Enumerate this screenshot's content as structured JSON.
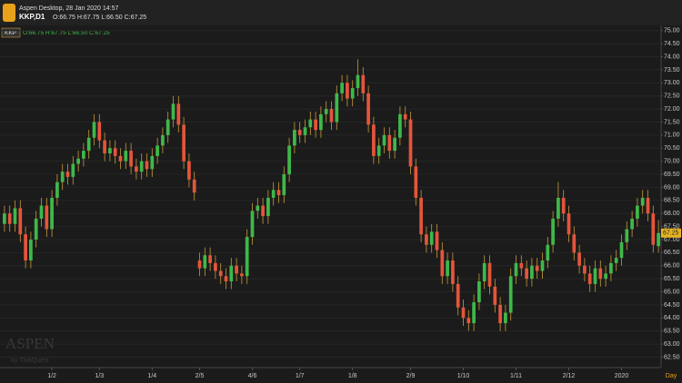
{
  "header": {
    "app_title": "Aspen Desktop, 28 Jan 2020 14:57",
    "symbol": "KKP,D1",
    "ohlc": "O:66.75 H:67.75 L:66.50 C:67.25"
  },
  "legend": {
    "symbol": "KKP",
    "ohlc": "O:66.75 H:67.75 L:66.50 C:67.25"
  },
  "watermark": {
    "brand": "ASPEN",
    "by": "by ThaiQuest"
  },
  "chart_data": {
    "type": "candlestick",
    "x_label": "Day",
    "last_price_label": "67.25",
    "up_color": "#3fb84a",
    "down_color": "#e4553b",
    "wick_color": "#c99a3a",
    "grid": true,
    "ylim": [
      62.1,
      75.2
    ],
    "yticks": [
      {
        "value": 62.5,
        "label": "62.50"
      },
      {
        "value": 63,
        "label": "63.00"
      },
      {
        "value": 63.5,
        "label": "63.50"
      },
      {
        "value": 64,
        "label": "64.00"
      },
      {
        "value": 64.5,
        "label": "64.50"
      },
      {
        "value": 65,
        "label": "65.00"
      },
      {
        "value": 65.5,
        "label": "65.50"
      },
      {
        "value": 66,
        "label": "66.00"
      },
      {
        "value": 66.5,
        "label": "66.50"
      },
      {
        "value": 67,
        "label": "67.00"
      },
      {
        "value": 67.5,
        "label": "67.50"
      },
      {
        "value": 68,
        "label": "68.00"
      },
      {
        "value": 68.5,
        "label": "68.50"
      },
      {
        "value": 69,
        "label": "69.00"
      },
      {
        "value": 69.5,
        "label": "69.50"
      },
      {
        "value": 70,
        "label": "70.00"
      },
      {
        "value": 70.5,
        "label": "70.50"
      },
      {
        "value": 71,
        "label": "71.00"
      },
      {
        "value": 71.5,
        "label": "71.50"
      },
      {
        "value": 72,
        "label": "72.00"
      },
      {
        "value": 72.5,
        "label": "72.50"
      },
      {
        "value": 73,
        "label": "73.00"
      },
      {
        "value": 73.5,
        "label": "73.50"
      },
      {
        "value": 74,
        "label": "74.00"
      },
      {
        "value": 74.5,
        "label": "74.50"
      },
      {
        "value": 75,
        "label": "75.00"
      }
    ],
    "categories": [
      null,
      null,
      null,
      null,
      null,
      null,
      null,
      null,
      null,
      "1/2",
      null,
      null,
      null,
      null,
      null,
      null,
      null,
      null,
      "1/3",
      null,
      null,
      null,
      null,
      null,
      null,
      null,
      null,
      null,
      "1/4",
      null,
      null,
      null,
      null,
      null,
      null,
      null,
      null,
      "2/5",
      null,
      null,
      null,
      null,
      null,
      null,
      null,
      null,
      null,
      "4/6",
      null,
      null,
      null,
      null,
      null,
      null,
      null,
      null,
      "1/7",
      null,
      null,
      null,
      null,
      null,
      null,
      null,
      null,
      null,
      "1/8",
      null,
      null,
      null,
      null,
      null,
      null,
      null,
      null,
      null,
      null,
      "2/9",
      null,
      null,
      null,
      null,
      null,
      null,
      null,
      null,
      null,
      "1/10",
      null,
      null,
      null,
      null,
      null,
      null,
      null,
      null,
      null,
      "1/11",
      null,
      null,
      null,
      null,
      null,
      null,
      null,
      null,
      null,
      "2/12",
      null,
      null,
      null,
      null,
      null,
      null,
      null,
      null,
      null,
      "2020",
      null,
      null,
      null,
      null,
      null,
      null,
      null
    ],
    "open": [
      67.6,
      68.0,
      67.6,
      68.2,
      67.2,
      66.2,
      67.0,
      67.8,
      68.3,
      67.4,
      68.6,
      69.2,
      69.6,
      69.4,
      69.9,
      70.1,
      70.4,
      70.9,
      71.5,
      70.8,
      70.3,
      70.5,
      70.2,
      70.0,
      70.4,
      69.8,
      69.6,
      70.0,
      69.7,
      70.2,
      70.6,
      71.0,
      71.6,
      72.2,
      71.4,
      70.0,
      69.3,
      66.2,
      65.9,
      66.4,
      66.1,
      65.8,
      65.6,
      65.4,
      66.0,
      65.7,
      65.6,
      67.1,
      68.1,
      68.3,
      67.9,
      68.6,
      68.9,
      68.7,
      69.5,
      70.6,
      71.2,
      71.0,
      71.3,
      71.6,
      71.2,
      71.8,
      72.0,
      71.5,
      72.6,
      73.0,
      72.4,
      72.8,
      73.3,
      72.6,
      71.4,
      70.2,
      70.6,
      71.0,
      70.4,
      70.9,
      71.8,
      71.6,
      69.8,
      68.6,
      67.2,
      66.8,
      67.3,
      66.6,
      65.6,
      66.2,
      65.3,
      64.4,
      64.0,
      63.8,
      64.6,
      65.4,
      66.1,
      65.2,
      64.5,
      63.8,
      64.2,
      65.6,
      66.1,
      65.9,
      65.5,
      66.0,
      65.8,
      66.2,
      66.8,
      67.8,
      68.6,
      68.0,
      67.2,
      66.5,
      66.0,
      65.7,
      65.3,
      65.9,
      65.5,
      65.7,
      66.1,
      66.3,
      66.9,
      67.4,
      67.8,
      68.3,
      68.6,
      68.0,
      66.75
    ],
    "high": [
      68.3,
      68.3,
      68.5,
      68.5,
      67.5,
      67.3,
      68.1,
      68.6,
      68.6,
      68.9,
      69.5,
      69.9,
      69.9,
      70.2,
      70.4,
      70.7,
      71.2,
      71.8,
      71.8,
      71.1,
      70.8,
      70.8,
      70.5,
      70.7,
      70.7,
      70.1,
      70.3,
      70.3,
      70.5,
      70.9,
      71.3,
      71.9,
      72.5,
      72.5,
      71.7,
      70.3,
      69.6,
      66.5,
      66.7,
      66.7,
      66.4,
      66.1,
      65.9,
      66.3,
      66.3,
      66.0,
      67.4,
      68.4,
      68.6,
      68.6,
      68.9,
      69.2,
      69.2,
      69.8,
      70.9,
      71.5,
      71.5,
      71.6,
      71.9,
      71.9,
      72.1,
      72.3,
      72.3,
      72.9,
      73.3,
      73.3,
      73.1,
      73.9,
      73.6,
      72.9,
      71.7,
      70.9,
      71.3,
      71.3,
      71.2,
      72.1,
      72.1,
      71.9,
      70.1,
      68.9,
      67.5,
      67.6,
      67.6,
      66.9,
      66.5,
      66.5,
      65.6,
      64.7,
      64.3,
      64.9,
      65.7,
      66.4,
      66.4,
      65.5,
      64.8,
      64.5,
      65.9,
      66.4,
      66.4,
      66.2,
      66.3,
      66.3,
      66.5,
      67.1,
      68.1,
      69.2,
      68.9,
      68.3,
      67.5,
      66.8,
      66.3,
      66.0,
      66.2,
      66.2,
      66.0,
      66.4,
      66.6,
      67.2,
      67.7,
      68.1,
      68.6,
      68.9,
      68.9,
      68.3,
      67.75
    ],
    "low": [
      67.3,
      67.3,
      67.3,
      66.9,
      65.9,
      65.9,
      66.7,
      67.5,
      67.1,
      67.1,
      68.3,
      68.9,
      69.1,
      69.1,
      69.6,
      69.8,
      70.1,
      70.6,
      70.5,
      70.0,
      70.0,
      69.9,
      69.7,
      69.7,
      69.5,
      69.3,
      69.3,
      69.4,
      69.4,
      69.9,
      70.3,
      70.7,
      71.3,
      71.1,
      69.7,
      69.0,
      68.5,
      65.6,
      65.6,
      65.8,
      65.5,
      65.3,
      65.1,
      65.1,
      65.4,
      65.3,
      65.3,
      66.8,
      67.8,
      67.6,
      67.6,
      68.3,
      68.4,
      68.4,
      69.2,
      70.3,
      70.7,
      70.7,
      71.0,
      70.9,
      70.9,
      71.5,
      71.2,
      71.2,
      72.3,
      72.1,
      72.1,
      72.5,
      72.3,
      71.1,
      69.9,
      69.9,
      70.3,
      70.1,
      70.1,
      70.6,
      71.3,
      69.5,
      68.3,
      66.9,
      66.5,
      66.5,
      66.3,
      65.3,
      65.3,
      65.0,
      64.1,
      63.7,
      63.5,
      63.5,
      64.3,
      65.1,
      64.9,
      64.2,
      63.5,
      63.5,
      63.9,
      65.3,
      65.6,
      65.2,
      65.2,
      65.5,
      65.5,
      65.9,
      66.5,
      67.5,
      67.7,
      66.9,
      66.2,
      65.7,
      65.4,
      65.0,
      65.0,
      65.2,
      65.2,
      65.4,
      65.8,
      66.0,
      66.6,
      67.1,
      67.5,
      68.0,
      67.7,
      66.5,
      66.5
    ],
    "close": [
      68.0,
      67.6,
      68.2,
      67.2,
      66.2,
      67.0,
      67.8,
      68.3,
      67.4,
      68.6,
      69.2,
      69.6,
      69.4,
      69.9,
      70.1,
      70.4,
      70.9,
      71.5,
      70.8,
      70.3,
      70.5,
      70.2,
      70.0,
      70.4,
      69.8,
      69.6,
      70.0,
      69.7,
      70.2,
      70.6,
      71.0,
      71.6,
      72.2,
      71.4,
      70.0,
      69.3,
      68.8,
      65.9,
      66.4,
      66.1,
      65.8,
      65.6,
      65.4,
      66.0,
      65.7,
      65.6,
      67.1,
      68.1,
      68.3,
      67.9,
      68.6,
      68.9,
      68.7,
      69.5,
      70.6,
      71.2,
      71.0,
      71.3,
      71.6,
      71.2,
      71.8,
      72.0,
      71.5,
      72.6,
      73.0,
      72.4,
      72.8,
      73.3,
      72.6,
      71.4,
      70.2,
      70.6,
      71.0,
      70.4,
      70.9,
      71.8,
      71.6,
      69.8,
      68.6,
      67.2,
      66.8,
      67.3,
      66.6,
      65.6,
      66.2,
      65.3,
      64.4,
      64.0,
      63.8,
      64.6,
      65.4,
      66.1,
      65.2,
      64.5,
      63.8,
      64.2,
      65.6,
      66.1,
      65.9,
      65.5,
      66.0,
      65.8,
      66.2,
      66.8,
      67.8,
      68.6,
      68.0,
      67.2,
      66.5,
      66.0,
      65.7,
      65.3,
      65.9,
      65.5,
      65.7,
      66.1,
      66.3,
      66.9,
      67.4,
      67.8,
      68.3,
      68.6,
      68.0,
      66.8,
      67.25
    ]
  }
}
